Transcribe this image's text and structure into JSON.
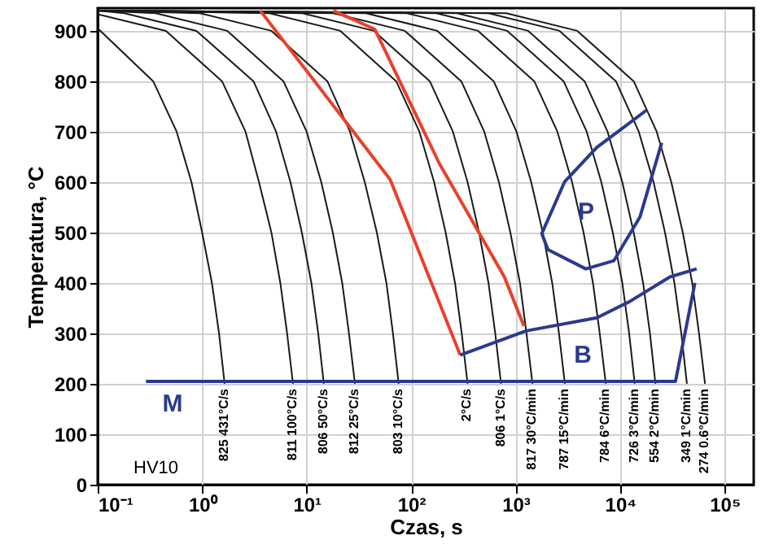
{
  "chart_data": {
    "type": "line",
    "xlabel": "Czas, s",
    "ylabel": "Temperatura, °C",
    "log": "x",
    "xlim": [
      0.1,
      190000
    ],
    "ylim": [
      0,
      945
    ],
    "xticks": [
      {
        "value": 0.1,
        "label": "10⁻¹"
      },
      {
        "value": 1,
        "label": "10⁰"
      },
      {
        "value": 10,
        "label": "10¹"
      },
      {
        "value": 100,
        "label": "10²"
      },
      {
        "value": 1000,
        "label": "10³"
      },
      {
        "value": 10000,
        "label": "10⁴"
      },
      {
        "value": 100000,
        "label": "10⁵"
      }
    ],
    "yticks": [
      0,
      100,
      200,
      300,
      400,
      500,
      600,
      700,
      800,
      900
    ],
    "grid": true,
    "marker": "none",
    "line_style": "solid",
    "series": [
      {
        "name": "825 431°C/s",
        "color": "#1a1a1a",
        "x": [
          0.1,
          0.34,
          0.57,
          0.79,
          1.0,
          1.24,
          1.45,
          1.64
        ],
        "values": [
          905,
          800,
          700,
          600,
          500,
          400,
          300,
          200
        ]
      },
      {
        "name": "811 100°C/s",
        "color": "#1a1a1a",
        "x": [
          0.1,
          0.45,
          1.55,
          2.6,
          3.5,
          4.6,
          5.6,
          6.5,
          7.4
        ],
        "values": [
          933,
          900,
          800,
          700,
          600,
          500,
          400,
          300,
          200
        ]
      },
      {
        "name": "806 50°C/s",
        "color": "#1a1a1a",
        "x": [
          0.1,
          0.18,
          0.88,
          3.1,
          5.1,
          7.0,
          9.0,
          11.1,
          12.9,
          14.6
        ],
        "values": [
          940,
          935,
          900,
          800,
          700,
          600,
          500,
          400,
          300,
          200
        ]
      },
      {
        "name": "812 25°C/s",
        "color": "#1a1a1a",
        "x": [
          0.1,
          0.36,
          1.74,
          6.0,
          10,
          13.8,
          17.8,
          21.9,
          25.4,
          29
        ],
        "values": [
          940,
          935,
          900,
          800,
          700,
          600,
          500,
          400,
          300,
          200
        ]
      },
      {
        "name": "803 10°C/s",
        "color": "#1a1a1a",
        "x": [
          0.1,
          0.95,
          4.6,
          15.8,
          26,
          36,
          47,
          58,
          67,
          76
        ],
        "values": [
          940,
          935,
          900,
          800,
          700,
          600,
          500,
          400,
          300,
          200
        ]
      },
      {
        "name": "2°C/s",
        "color": "#1a1a1a",
        "x": [
          0.1,
          4.4,
          21,
          72,
          120,
          166,
          214,
          263,
          305,
          347
        ],
        "values": [
          940,
          935,
          900,
          800,
          700,
          600,
          500,
          400,
          300,
          200
        ]
      },
      {
        "name": "806 1°C/s",
        "color": "#1a1a1a",
        "x": [
          0.1,
          9.1,
          44,
          151,
          251,
          347,
          447,
          550,
          638,
          725
        ],
        "values": [
          940,
          935,
          900,
          800,
          700,
          600,
          500,
          400,
          300,
          200
        ]
      },
      {
        "name": "817 30°C/min",
        "color": "#1a1a1a",
        "x": [
          0.1,
          18,
          87,
          302,
          501,
          692,
          891,
          1100,
          1270,
          1450
        ],
        "values": [
          940,
          935,
          900,
          800,
          700,
          600,
          500,
          400,
          300,
          200
        ]
      },
      {
        "name": "787 15°C/min",
        "color": "#1a1a1a",
        "x": [
          0.1,
          37,
          178,
          617,
          1020,
          1410,
          1820,
          2240,
          2600,
          2960
        ],
        "values": [
          940,
          935,
          900,
          800,
          700,
          600,
          500,
          400,
          300,
          200
        ]
      },
      {
        "name": "784 6°C/min",
        "color": "#1a1a1a",
        "x": [
          0.1,
          91,
          437,
          1510,
          2510,
          3470,
          4470,
          5500,
          6380,
          7300
        ],
        "values": [
          940,
          935,
          900,
          800,
          700,
          600,
          500,
          400,
          300,
          200
        ]
      },
      {
        "name": "726 3°C/min",
        "color": "#1a1a1a",
        "x": [
          0.1,
          174,
          832,
          2880,
          4790,
          6610,
          8510,
          10500,
          12200,
          13800
        ],
        "values": [
          940,
          935,
          900,
          800,
          700,
          600,
          500,
          400,
          300,
          200
        ]
      },
      {
        "name": "554 2°C/min",
        "color": "#1a1a1a",
        "x": [
          0.1,
          275,
          1320,
          4570,
          7590,
          10500,
          13500,
          16600,
          19300,
          21800
        ],
        "values": [
          940,
          935,
          900,
          800,
          700,
          600,
          500,
          400,
          300,
          200
        ]
      },
      {
        "name": "349 1°C/min",
        "color": "#1a1a1a",
        "x": [
          0.1,
          550,
          2630,
          9120,
          15100,
          20900,
          26900,
          33100,
          38500,
          43600
        ],
        "values": [
          940,
          935,
          900,
          800,
          700,
          600,
          500,
          400,
          300,
          200
        ]
      },
      {
        "name": "274 0.6°C/min",
        "color": "#1a1a1a",
        "x": [
          0.1,
          813,
          3890,
          13500,
          22400,
          30900,
          39800,
          49000,
          56900,
          65000
        ],
        "values": [
          940,
          935,
          900,
          800,
          700,
          600,
          500,
          400,
          300,
          200
        ]
      },
      {
        "color": "#e8412c",
        "x": [
          3.6,
          63,
          295
        ],
        "values": [
          940,
          605,
          257
        ]
      },
      {
        "color": "#e8412c",
        "x": [
          18,
          45,
          186,
          780,
          1200
        ],
        "values": [
          940,
          903,
          637,
          412,
          315
        ]
      },
      {
        "color": "#2b3a8f",
        "x": [
          0.29,
          33900,
          52000
        ],
        "values": [
          205,
          205,
          400
        ]
      },
      {
        "color": "#2b3a8f",
        "x": [
          295,
          1260,
          6000,
          12300,
          30000,
          54000
        ],
        "values": [
          257,
          305,
          331,
          363,
          412,
          428
        ]
      },
      {
        "color": "#2b3a8f",
        "x": [
          18000,
          6000,
          2950,
          1780,
          2040,
          4700,
          8700,
          15500,
          25000
        ],
        "values": [
          743,
          669,
          601,
          498,
          466,
          428,
          444,
          531,
          678
        ]
      }
    ],
    "annotations": [
      "P",
      "B",
      "M",
      "HV10"
    ]
  }
}
